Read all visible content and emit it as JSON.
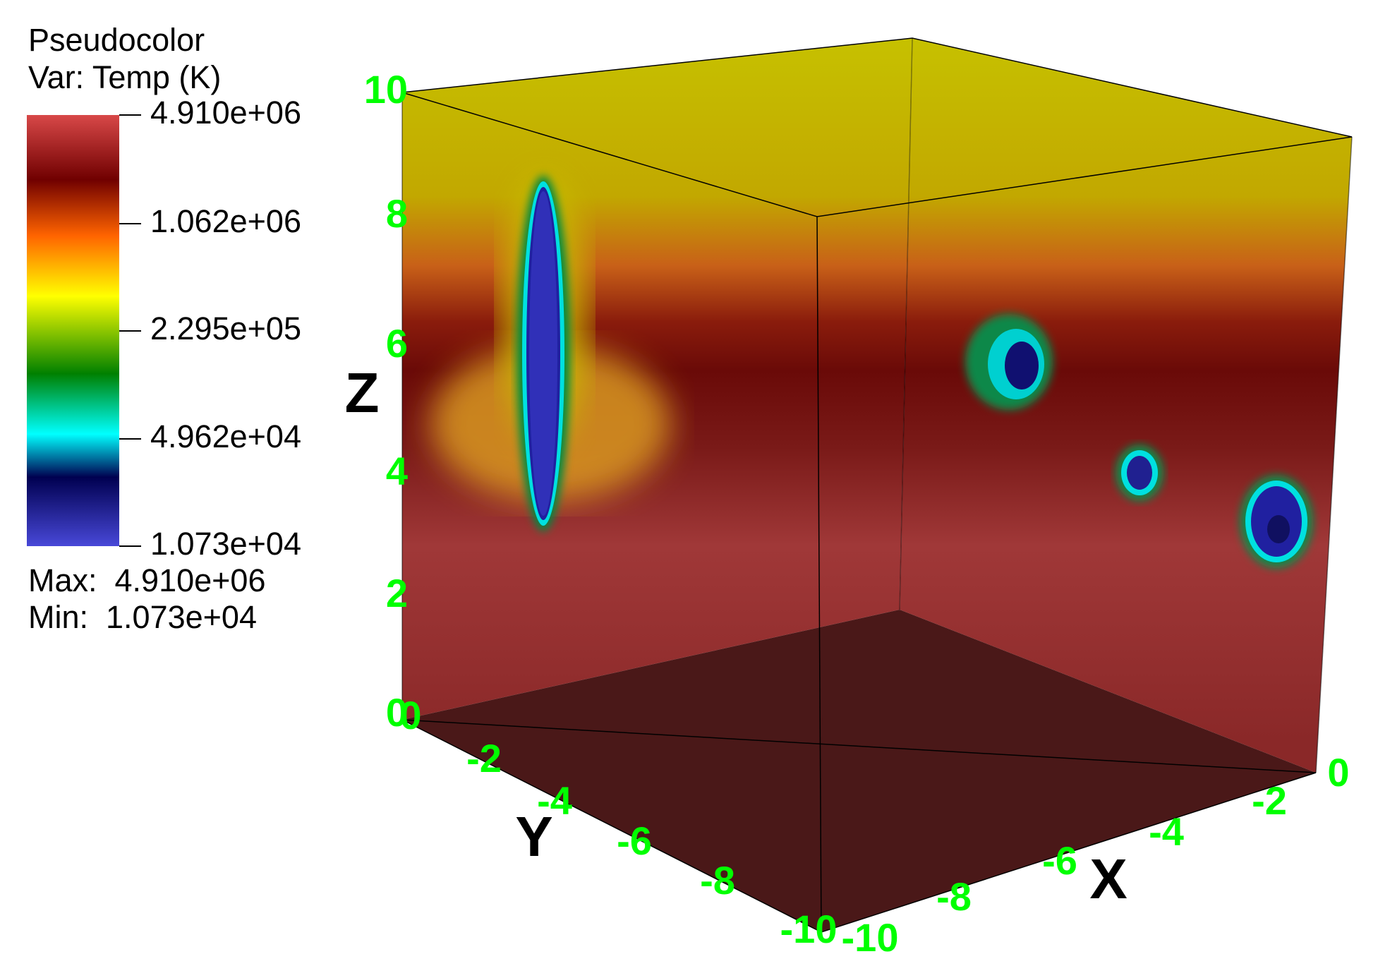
{
  "legend": {
    "title": "Pseudocolor",
    "variable": "Var: Temp (K)",
    "ticks": [
      "4.910e+06",
      "1.062e+06",
      "2.295e+05",
      "4.962e+04",
      "1.073e+04"
    ],
    "max": "Max:  4.910e+06",
    "min": "Min:  1.073e+04"
  },
  "axes": {
    "z": {
      "title": "Z",
      "ticks": [
        0,
        2,
        4,
        6,
        8,
        10
      ]
    },
    "y": {
      "title": "Y",
      "ticks": [
        0,
        -2,
        -4,
        -6,
        -8,
        -10
      ]
    },
    "x": {
      "title": "X",
      "ticks": [
        -10,
        -8,
        -6,
        -4,
        -2,
        0
      ]
    }
  }
}
